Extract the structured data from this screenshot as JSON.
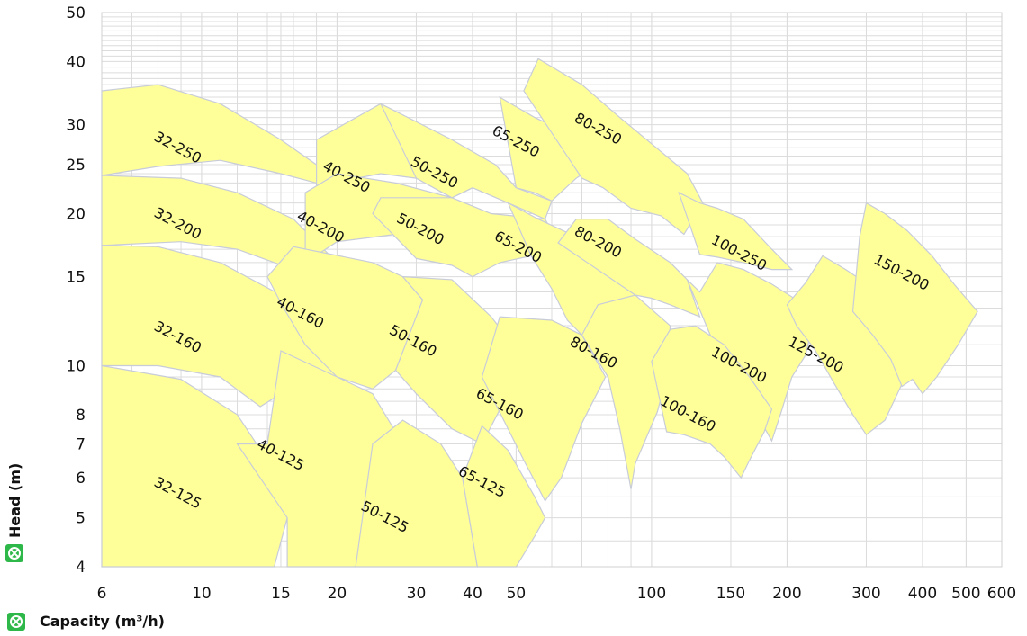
{
  "chart_data": {
    "type": "area",
    "title": "",
    "xlabel": "Capacity (m³/h)",
    "ylabel": "Head  (m)",
    "x_scale": "log",
    "y_scale": "log",
    "xlim": [
      6,
      600
    ],
    "ylim": [
      4,
      50
    ],
    "x_ticks": [
      6,
      10,
      15,
      20,
      30,
      40,
      50,
      100,
      150,
      200,
      300,
      400,
      500,
      600
    ],
    "y_ticks": [
      4,
      5,
      6,
      7,
      8,
      10,
      15,
      20,
      25,
      30,
      40,
      50
    ],
    "grid": true,
    "legend": "none",
    "colors": {
      "zone_fill": "#ffff99",
      "zone_stroke": "#c8ccd8",
      "grid": "#dcdcdc",
      "icon": "#2fb84a"
    },
    "series": [
      {
        "name": "32-250",
        "polygon": [
          [
            6,
            35
          ],
          [
            8,
            36
          ],
          [
            11,
            33
          ],
          [
            15,
            28
          ],
          [
            18,
            25
          ],
          [
            18,
            23
          ],
          [
            15,
            24
          ],
          [
            11,
            25.5
          ],
          [
            8,
            24.8
          ],
          [
            6,
            23.8
          ]
        ]
      },
      {
        "name": "32-200",
        "polygon": [
          [
            6,
            23.8
          ],
          [
            9,
            23.5
          ],
          [
            12,
            22
          ],
          [
            16,
            19.5
          ],
          [
            20,
            16
          ],
          [
            24,
            13.6
          ],
          [
            24,
            12.5
          ],
          [
            20,
            14
          ],
          [
            16,
            15.5
          ],
          [
            12,
            17
          ],
          [
            9,
            17.6
          ],
          [
            6,
            17.3
          ]
        ]
      },
      {
        "name": "32-160",
        "polygon": [
          [
            6,
            17.3
          ],
          [
            8,
            17.2
          ],
          [
            11,
            16
          ],
          [
            15,
            13.8
          ],
          [
            19,
            11
          ],
          [
            21,
            9
          ],
          [
            20,
            8.2
          ],
          [
            18,
            8.8
          ],
          [
            15,
            8.8
          ],
          [
            13.5,
            8.3
          ],
          [
            11,
            9.5
          ],
          [
            8,
            10
          ],
          [
            6,
            10
          ]
        ]
      },
      {
        "name": "32-125",
        "polygon": [
          [
            6,
            10
          ],
          [
            9,
            9.4
          ],
          [
            12,
            8
          ],
          [
            14,
            6.5
          ],
          [
            15.5,
            5
          ],
          [
            14.5,
            4
          ],
          [
            6,
            4
          ]
        ]
      },
      {
        "name": "40-250",
        "polygon": [
          [
            18,
            28
          ],
          [
            25,
            33
          ],
          [
            35,
            27
          ],
          [
            40,
            22.5
          ],
          [
            36,
            21.5
          ],
          [
            30,
            23.5
          ],
          [
            25,
            24
          ],
          [
            18,
            22.7
          ],
          [
            18,
            24
          ]
        ]
      },
      {
        "name": "40-200",
        "polygon": [
          [
            17,
            22
          ],
          [
            20,
            24
          ],
          [
            27,
            23
          ],
          [
            36,
            21.5
          ],
          [
            45,
            18
          ],
          [
            40,
            16.3
          ],
          [
            33,
            17.5
          ],
          [
            27,
            18.2
          ],
          [
            20,
            17.6
          ],
          [
            17,
            16
          ]
        ]
      },
      {
        "name": "40-160",
        "polygon": [
          [
            14,
            15
          ],
          [
            16,
            17.2
          ],
          [
            24,
            16
          ],
          [
            28,
            15
          ],
          [
            31,
            13.5
          ],
          [
            27,
            9.8
          ],
          [
            24,
            9
          ],
          [
            20,
            9.5
          ],
          [
            17,
            11
          ],
          [
            15,
            13.3
          ]
        ]
      },
      {
        "name": "40-125",
        "polygon": [
          [
            12,
            7
          ],
          [
            14,
            7
          ],
          [
            15,
            10.7
          ],
          [
            20,
            9.5
          ],
          [
            24,
            8.8
          ],
          [
            28,
            7
          ],
          [
            26,
            6.5
          ],
          [
            22,
            4
          ],
          [
            15.5,
            4
          ],
          [
            15.5,
            5
          ]
        ]
      },
      {
        "name": "50-250",
        "polygon": [
          [
            25,
            33
          ],
          [
            36,
            28
          ],
          [
            45,
            25
          ],
          [
            50,
            22.5
          ],
          [
            60,
            21.2
          ],
          [
            58,
            19.5
          ],
          [
            48,
            21
          ],
          [
            40,
            22.5
          ],
          [
            36,
            21.5
          ],
          [
            30,
            23.5
          ]
        ]
      },
      {
        "name": "50-200",
        "polygon": [
          [
            24,
            20
          ],
          [
            25,
            21.5
          ],
          [
            36,
            21.5
          ],
          [
            44,
            20
          ],
          [
            58,
            19.5
          ],
          [
            62,
            17.5
          ],
          [
            54,
            16.5
          ],
          [
            46,
            16
          ],
          [
            40,
            15
          ],
          [
            36,
            15.8
          ],
          [
            30,
            16.3
          ]
        ]
      },
      {
        "name": "50-160",
        "polygon": [
          [
            28,
            15
          ],
          [
            36,
            14.8
          ],
          [
            44,
            12.5
          ],
          [
            52,
            10.3
          ],
          [
            47,
            8.5
          ],
          [
            42,
            7
          ],
          [
            36,
            7.5
          ],
          [
            30,
            8.8
          ],
          [
            27,
            9.8
          ],
          [
            31,
            13.5
          ]
        ]
      },
      {
        "name": "50-125",
        "polygon": [
          [
            22,
            4
          ],
          [
            24,
            7
          ],
          [
            28,
            7.8
          ],
          [
            34,
            7
          ],
          [
            38,
            6
          ],
          [
            41,
            4
          ],
          [
            31,
            4
          ],
          [
            27,
            4
          ]
        ]
      },
      {
        "name": "65-250",
        "polygon": [
          [
            46,
            34
          ],
          [
            55,
            31
          ],
          [
            70,
            28
          ],
          [
            78,
            25.5
          ],
          [
            68,
            23.5
          ],
          [
            60,
            21.2
          ],
          [
            55,
            22
          ],
          [
            50,
            22.5
          ]
        ]
      },
      {
        "name": "65-200",
        "polygon": [
          [
            48,
            21
          ],
          [
            56,
            19.5
          ],
          [
            68,
            18
          ],
          [
            85,
            15.5
          ],
          [
            92,
            13.8
          ],
          [
            80,
            12.5
          ],
          [
            70,
            11.5
          ],
          [
            65,
            12.3
          ],
          [
            60,
            14.2
          ],
          [
            54,
            16.5
          ]
        ]
      },
      {
        "name": "65-160",
        "polygon": [
          [
            42,
            9.5
          ],
          [
            46,
            12.5
          ],
          [
            60,
            12.3
          ],
          [
            70,
            11.5
          ],
          [
            79,
            9.5
          ],
          [
            70,
            7.7
          ],
          [
            63,
            6
          ],
          [
            58,
            5.4
          ],
          [
            52,
            6.5
          ]
        ]
      },
      {
        "name": "65-125",
        "polygon": [
          [
            38,
            6
          ],
          [
            42,
            7.6
          ],
          [
            48,
            6.8
          ],
          [
            55,
            5.5
          ],
          [
            58,
            5
          ],
          [
            55,
            4.6
          ],
          [
            50,
            4
          ],
          [
            41,
            4
          ]
        ]
      },
      {
        "name": "80-250",
        "polygon": [
          [
            52,
            35
          ],
          [
            56,
            40.5
          ],
          [
            70,
            36
          ],
          [
            85,
            31
          ],
          [
            100,
            27.5
          ],
          [
            120,
            24
          ],
          [
            130,
            21
          ],
          [
            118,
            18.2
          ],
          [
            105,
            19.8
          ],
          [
            90,
            20.5
          ],
          [
            78,
            22.5
          ],
          [
            70,
            23.5
          ]
        ]
      },
      {
        "name": "80-200",
        "polygon": [
          [
            62,
            17.5
          ],
          [
            68,
            19.5
          ],
          [
            80,
            19.5
          ],
          [
            92,
            17.8
          ],
          [
            110,
            16
          ],
          [
            120,
            14.8
          ],
          [
            128,
            12.5
          ],
          [
            110,
            13.2
          ],
          [
            100,
            13.6
          ],
          [
            92,
            13.8
          ]
        ]
      },
      {
        "name": "80-160",
        "polygon": [
          [
            70,
            11.5
          ],
          [
            76,
            13.2
          ],
          [
            92,
            13.8
          ],
          [
            110,
            12
          ],
          [
            108,
            9.5
          ],
          [
            103,
            8.1
          ],
          [
            96,
            7
          ],
          [
            92,
            6.4
          ],
          [
            90,
            5.7
          ],
          [
            85,
            7.5
          ],
          [
            80,
            9.5
          ]
        ]
      },
      {
        "name": "100-250",
        "polygon": [
          [
            115,
            22
          ],
          [
            128,
            21
          ],
          [
            140,
            20.5
          ],
          [
            160,
            19.5
          ],
          [
            185,
            17
          ],
          [
            205,
            15.5
          ],
          [
            185,
            15.5
          ],
          [
            160,
            16
          ],
          [
            140,
            16.4
          ],
          [
            128,
            16.6
          ]
        ]
      },
      {
        "name": "100-200",
        "polygon": [
          [
            120,
            14.8
          ],
          [
            128,
            14
          ],
          [
            140,
            16
          ],
          [
            160,
            15.5
          ],
          [
            185,
            14.5
          ],
          [
            210,
            13.5
          ],
          [
            230,
            12.5
          ],
          [
            220,
            10.5
          ],
          [
            205,
            9.5
          ],
          [
            195,
            8.2
          ],
          [
            185,
            7.1
          ],
          [
            165,
            8.5
          ],
          [
            150,
            10.5
          ],
          [
            135,
            11.5
          ]
        ]
      },
      {
        "name": "100-160",
        "polygon": [
          [
            100,
            10.2
          ],
          [
            110,
            11.8
          ],
          [
            125,
            12
          ],
          [
            145,
            11
          ],
          [
            165,
            9.5
          ],
          [
            185,
            8.2
          ],
          [
            178,
            7.4
          ],
          [
            165,
            6.5
          ],
          [
            158,
            6
          ],
          [
            145,
            6.6
          ],
          [
            135,
            7
          ],
          [
            118,
            7.3
          ],
          [
            108,
            7.4
          ]
        ]
      },
      {
        "name": "125-200",
        "polygon": [
          [
            200,
            13.2
          ],
          [
            220,
            14.6
          ],
          [
            240,
            16.5
          ],
          [
            270,
            15.5
          ],
          [
            320,
            14
          ],
          [
            360,
            12.5
          ],
          [
            390,
            10.5
          ],
          [
            360,
            9.2
          ],
          [
            330,
            7.8
          ],
          [
            300,
            7.3
          ],
          [
            280,
            8
          ],
          [
            255,
            9.2
          ],
          [
            230,
            10.8
          ],
          [
            210,
            12
          ]
        ]
      },
      {
        "name": "150-200",
        "polygon": [
          [
            280,
            12.8
          ],
          [
            290,
            18
          ],
          [
            300,
            21
          ],
          [
            330,
            20
          ],
          [
            370,
            18.5
          ],
          [
            420,
            16.5
          ],
          [
            470,
            14.5
          ],
          [
            530,
            12.8
          ],
          [
            480,
            11
          ],
          [
            430,
            9.5
          ],
          [
            400,
            8.8
          ],
          [
            380,
            9.4
          ],
          [
            360,
            9.1
          ],
          [
            340,
            10.3
          ],
          [
            310,
            11.5
          ]
        ]
      }
    ],
    "zone_labels": [
      {
        "text": "32-250",
        "x": 7.8,
        "y": 28.0,
        "angle": 28
      },
      {
        "text": "32-200",
        "x": 7.8,
        "y": 19.8,
        "angle": 28
      },
      {
        "text": "32-160",
        "x": 7.8,
        "y": 11.8,
        "angle": 28
      },
      {
        "text": "32-125",
        "x": 7.8,
        "y": 5.8,
        "angle": 28
      },
      {
        "text": "40-250",
        "x": 18.5,
        "y": 24.5,
        "angle": 28
      },
      {
        "text": "40-200",
        "x": 16.2,
        "y": 19.5,
        "angle": 28
      },
      {
        "text": "40-160",
        "x": 14.6,
        "y": 13.2,
        "angle": 28
      },
      {
        "text": "40-125",
        "x": 13.2,
        "y": 6.9,
        "angle": 28
      },
      {
        "text": "50-250",
        "x": 29.0,
        "y": 25.0,
        "angle": 28
      },
      {
        "text": "50-200",
        "x": 27.0,
        "y": 19.3,
        "angle": 28
      },
      {
        "text": "50-160",
        "x": 26.0,
        "y": 11.6,
        "angle": 28
      },
      {
        "text": "50-125",
        "x": 22.5,
        "y": 5.2,
        "angle": 28
      },
      {
        "text": "65-250",
        "x": 44.0,
        "y": 28.8,
        "angle": 28
      },
      {
        "text": "65-200",
        "x": 44.5,
        "y": 17.8,
        "angle": 28
      },
      {
        "text": "65-160",
        "x": 40.5,
        "y": 8.7,
        "angle": 28
      },
      {
        "text": "65-125",
        "x": 37.0,
        "y": 6.1,
        "angle": 28
      },
      {
        "text": "80-250",
        "x": 67.0,
        "y": 30.5,
        "angle": 28
      },
      {
        "text": "80-200",
        "x": 67.0,
        "y": 18.2,
        "angle": 28
      },
      {
        "text": "80-160",
        "x": 65.5,
        "y": 11.0,
        "angle": 28
      },
      {
        "text": "100-250",
        "x": 135.0,
        "y": 17.5,
        "angle": 28
      },
      {
        "text": "100-200",
        "x": 135.0,
        "y": 10.5,
        "angle": 28
      },
      {
        "text": "100-160",
        "x": 104.0,
        "y": 8.4,
        "angle": 28
      },
      {
        "text": "125-200",
        "x": 200.0,
        "y": 11.0,
        "angle": 28
      },
      {
        "text": "150-200",
        "x": 310.0,
        "y": 16.0,
        "angle": 28
      }
    ]
  }
}
